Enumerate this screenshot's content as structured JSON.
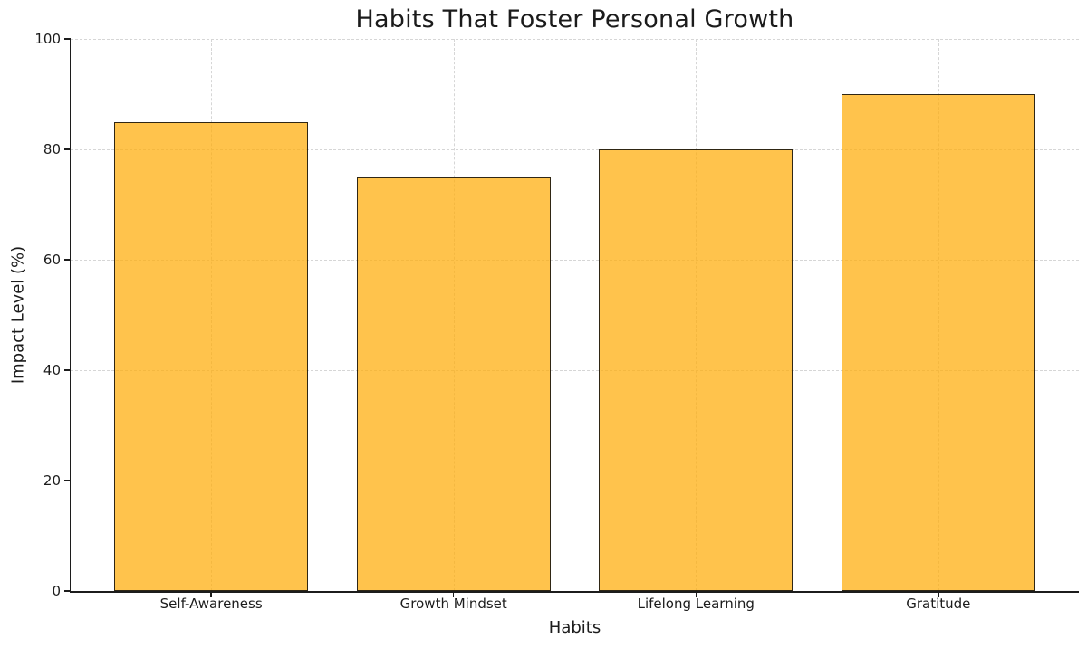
{
  "chart_data": {
    "type": "bar",
    "title": "Habits That Foster Personal Growth",
    "xlabel": "Habits",
    "ylabel": "Impact Level (%)",
    "categories": [
      "Self-Awareness",
      "Growth Mindset",
      "Lifelong Learning",
      "Gratitude"
    ],
    "values": [
      85,
      75,
      80,
      90
    ],
    "ylim": [
      0,
      100
    ],
    "yticks": [
      0,
      20,
      40,
      60,
      80,
      100
    ],
    "grid": "dashed-both-axes",
    "legend": "none",
    "bar_width_fraction": 0.8,
    "colors": {
      "bar_fill": "#ffc44d",
      "bar_edge": "#262626",
      "grid_line": "#d6d6d6",
      "axis_line": "#1c1c1c",
      "text": "#1c1c1c",
      "background": "#ffffff"
    }
  }
}
